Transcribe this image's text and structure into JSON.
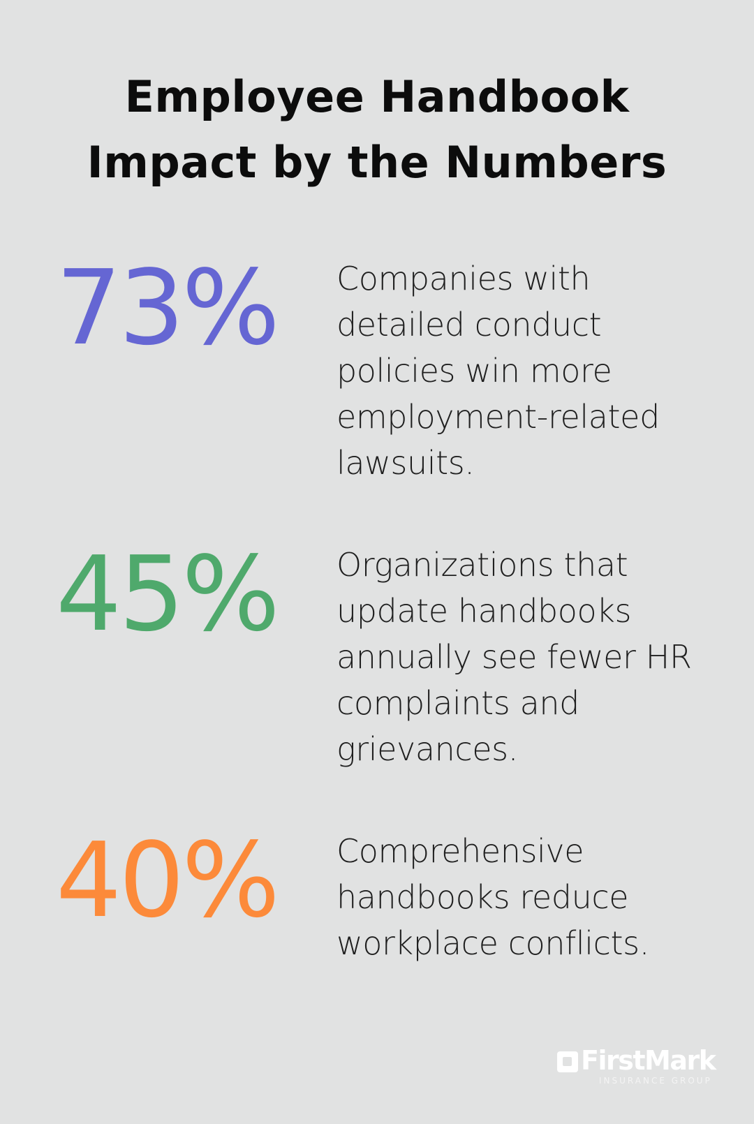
{
  "title": {
    "line1": "Employee Handbook",
    "line2": "Impact by the Numbers"
  },
  "stats": [
    {
      "value": "73%",
      "color": "#6566d3",
      "lines": [
        "Companies with",
        "detailed conduct",
        "policies win more",
        "employment-related",
        "lawsuits."
      ]
    },
    {
      "value": "45%",
      "color": "#4fa96c",
      "lines": [
        "Organizations that",
        "update handbooks",
        "annually see fewer HR",
        "complaints and",
        "grievances."
      ]
    },
    {
      "value": "40%",
      "color": "#fc8a3a",
      "lines": [
        "Comprehensive",
        "handbooks reduce",
        "workplace conflicts."
      ]
    }
  ],
  "logo": {
    "name": "FirstMark",
    "tagline": "INSURANCE GROUP",
    "icon": "square-logo-icon"
  }
}
